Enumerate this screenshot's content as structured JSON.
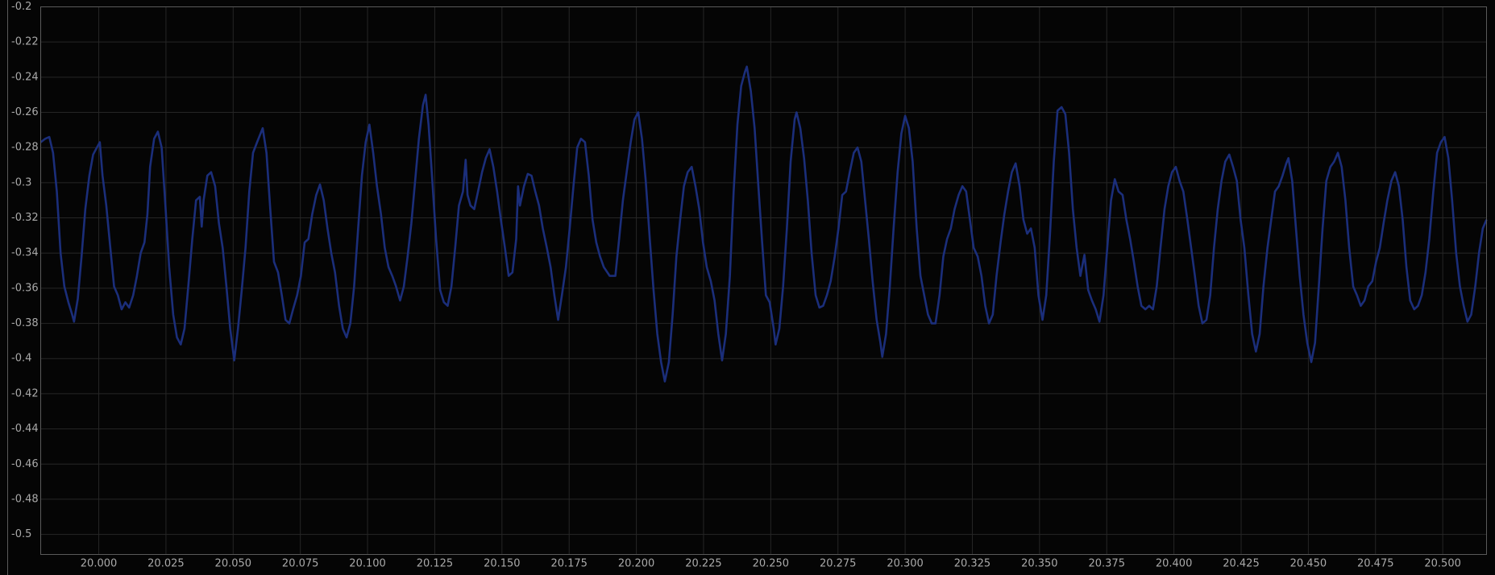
{
  "chart_data": {
    "type": "line",
    "color": "#1b2e7a",
    "grid": true,
    "xlim": [
      19.9784,
      20.5163
    ],
    "ylim": [
      -0.5114,
      -0.2
    ],
    "xticks": [
      {
        "value": 20,
        "label": "20.000"
      },
      20.025,
      {
        "value": 20.05,
        "label": "20.050"
      },
      20.075,
      {
        "value": 20.1,
        "label": "20.100"
      },
      20.125,
      {
        "value": 20.15,
        "label": "20.150"
      },
      20.175,
      {
        "value": 20.2,
        "label": "20.200"
      },
      20.225,
      {
        "value": 20.25,
        "label": "20.250"
      },
      20.275,
      {
        "value": 20.3,
        "label": "20.300"
      },
      20.325,
      {
        "value": 20.35,
        "label": "20.350"
      },
      20.375,
      {
        "value": 20.4,
        "label": "20.400"
      },
      20.425,
      {
        "value": 20.45,
        "label": "20.450"
      },
      20.475,
      {
        "value": 20.5,
        "label": "20.500"
      }
    ],
    "yticks": [
      -0.2,
      -0.22,
      -0.24,
      -0.26,
      -0.28,
      -0.3,
      -0.32,
      -0.34,
      -0.36,
      -0.38,
      -0.4,
      -0.42,
      -0.44,
      -0.46,
      -0.48,
      -0.5
    ],
    "x": [
      19.9784,
      19.9801,
      19.9816,
      19.983,
      19.9844,
      19.9858,
      19.9872,
      19.9887,
      19.9901,
      19.9908,
      19.9922,
      19.9936,
      19.995,
      19.9965,
      19.9979,
      19.9993,
      20.0004,
      20.0014,
      20.0028,
      20.0043,
      20.0057,
      20.0071,
      20.0085,
      20.0099,
      20.0113,
      20.0128,
      20.0142,
      20.0156,
      20.017,
      20.0181,
      20.0191,
      20.0206,
      20.022,
      20.0234,
      20.0248,
      20.0262,
      20.0277,
      20.0291,
      20.0305,
      20.0319,
      20.0333,
      20.0348,
      20.0362,
      20.0376,
      20.0383,
      20.039,
      20.0404,
      20.0418,
      20.0433,
      20.0447,
      20.0461,
      20.0475,
      20.0489,
      20.0504,
      20.0518,
      20.0532,
      20.0546,
      20.056,
      20.0574,
      20.0589,
      20.061,
      20.0624,
      20.0638,
      20.0652,
      20.0667,
      20.0681,
      20.0695,
      20.0709,
      20.0723,
      20.0738,
      20.0752,
      20.0766,
      20.078,
      20.0794,
      20.0809,
      20.0823,
      20.0837,
      20.0851,
      20.0865,
      20.0879,
      20.0894,
      20.0908,
      20.0922,
      20.0936,
      20.095,
      20.0965,
      20.0979,
      20.0993,
      20.1007,
      20.1021,
      20.1035,
      20.105,
      20.1064,
      20.1078,
      20.1092,
      20.1106,
      20.1121,
      20.1135,
      20.1149,
      20.1163,
      20.1177,
      20.1191,
      20.1206,
      20.1216,
      20.1227,
      20.1241,
      20.1255,
      20.127,
      20.1284,
      20.1298,
      20.1312,
      20.1326,
      20.134,
      20.1355,
      20.1365,
      20.1372,
      20.1383,
      20.1397,
      20.1411,
      20.1426,
      20.144,
      20.1454,
      20.1468,
      20.1482,
      20.1496,
      20.1511,
      20.1525,
      20.1539,
      20.1553,
      20.156,
      20.1567,
      20.1582,
      20.1596,
      20.161,
      20.1624,
      20.1638,
      20.1652,
      20.1667,
      20.1681,
      20.1695,
      20.1709,
      20.1723,
      20.1738,
      20.1752,
      20.1766,
      20.178,
      20.1794,
      20.1809,
      20.1823,
      20.1837,
      20.1851,
      20.1865,
      20.1879,
      20.1901,
      20.1922,
      20.1936,
      20.195,
      20.1964,
      20.1979,
      20.1993,
      20.2007,
      20.2021,
      20.2035,
      20.205,
      20.2064,
      20.2078,
      20.2092,
      20.2106,
      20.2121,
      20.2135,
      20.2149,
      20.2163,
      20.2177,
      20.2191,
      20.2206,
      20.222,
      20.2234,
      20.2248,
      20.2262,
      20.2277,
      20.2291,
      20.2305,
      20.2319,
      20.2333,
      20.2348,
      20.2362,
      20.2376,
      20.239,
      20.2404,
      20.2411,
      20.2426,
      20.244,
      20.2454,
      20.2468,
      20.2482,
      20.2496,
      20.2511,
      20.2518,
      20.2532,
      20.2546,
      20.256,
      20.2574,
      20.2589,
      20.2596,
      20.261,
      20.2624,
      20.2638,
      20.2652,
      20.2667,
      20.2681,
      20.2695,
      20.2709,
      20.2723,
      20.2738,
      20.2752,
      20.2766,
      20.278,
      20.2794,
      20.2809,
      20.2823,
      20.2837,
      20.2851,
      20.2865,
      20.2879,
      20.2894,
      20.2908,
      20.2915,
      20.2929,
      20.2943,
      20.2957,
      20.2972,
      20.2986,
      20.3,
      20.3014,
      20.3028,
      20.3043,
      20.3057,
      20.3071,
      20.3085,
      20.3099,
      20.3113,
      20.3128,
      20.3142,
      20.3156,
      20.317,
      20.3184,
      20.3199,
      20.3213,
      20.3227,
      20.3241,
      20.3255,
      20.327,
      20.3284,
      20.3298,
      20.3312,
      20.3326,
      20.334,
      20.3355,
      20.3369,
      20.3383,
      20.3397,
      20.3411,
      20.3426,
      20.344,
      20.3454,
      20.3468,
      20.3482,
      20.3496,
      20.3511,
      20.3525,
      20.3539,
      20.3553,
      20.3567,
      20.3582,
      20.3596,
      20.361,
      20.3624,
      20.3638,
      20.3652,
      20.3667,
      20.3681,
      20.3695,
      20.3709,
      20.3723,
      20.3738,
      20.3752,
      20.3766,
      20.378,
      20.3794,
      20.3809,
      20.3823,
      20.3837,
      20.3851,
      20.3865,
      20.3879,
      20.3894,
      20.3908,
      20.3922,
      20.3936,
      20.395,
      20.3965,
      20.3979,
      20.3993,
      20.4007,
      20.4021,
      20.4035,
      20.405,
      20.4064,
      20.4078,
      20.4092,
      20.4106,
      20.4121,
      20.4135,
      20.4149,
      20.4163,
      20.4177,
      20.4191,
      20.4206,
      20.422,
      20.4234,
      20.4248,
      20.4262,
      20.4277,
      20.4291,
      20.4305,
      20.4319,
      20.4333,
      20.4348,
      20.4362,
      20.4376,
      20.439,
      20.4404,
      20.4418,
      20.4426,
      20.444,
      20.4454,
      20.4468,
      20.4482,
      20.4496,
      20.4511,
      20.4525,
      20.4539,
      20.4553,
      20.4567,
      20.4582,
      20.4596,
      20.461,
      20.4624,
      20.4638,
      20.4652,
      20.4667,
      20.4681,
      20.4695,
      20.4709,
      20.4723,
      20.4738,
      20.4752,
      20.4766,
      20.478,
      20.4794,
      20.4809,
      20.4823,
      20.4837,
      20.4851,
      20.4865,
      20.4879,
      20.4894,
      20.4908,
      20.4922,
      20.4936,
      20.495,
      20.4965,
      20.4979,
      20.4993,
      20.5007,
      20.5021,
      20.5035,
      20.505,
      20.5064,
      20.5078,
      20.5092,
      20.5106,
      20.5121,
      20.5135,
      20.5149,
      20.5163
    ],
    "values": [
      -0.277,
      -0.275,
      -0.274,
      -0.283,
      -0.305,
      -0.34,
      -0.359,
      -0.368,
      -0.375,
      -0.379,
      -0.366,
      -0.342,
      -0.315,
      -0.296,
      -0.284,
      -0.28,
      -0.277,
      -0.296,
      -0.313,
      -0.337,
      -0.359,
      -0.364,
      -0.372,
      -0.368,
      -0.371,
      -0.364,
      -0.353,
      -0.34,
      -0.334,
      -0.318,
      -0.291,
      -0.275,
      -0.271,
      -0.28,
      -0.313,
      -0.348,
      -0.375,
      -0.388,
      -0.392,
      -0.383,
      -0.359,
      -0.332,
      -0.31,
      -0.308,
      -0.325,
      -0.31,
      -0.296,
      -0.294,
      -0.302,
      -0.323,
      -0.337,
      -0.359,
      -0.383,
      -0.401,
      -0.383,
      -0.361,
      -0.337,
      -0.305,
      -0.283,
      -0.277,
      -0.269,
      -0.283,
      -0.315,
      -0.345,
      -0.351,
      -0.364,
      -0.378,
      -0.38,
      -0.372,
      -0.364,
      -0.353,
      -0.334,
      -0.332,
      -0.318,
      -0.307,
      -0.301,
      -0.31,
      -0.326,
      -0.34,
      -0.351,
      -0.37,
      -0.383,
      -0.388,
      -0.38,
      -0.359,
      -0.326,
      -0.296,
      -0.277,
      -0.267,
      -0.283,
      -0.302,
      -0.318,
      -0.337,
      -0.348,
      -0.353,
      -0.359,
      -0.367,
      -0.359,
      -0.342,
      -0.323,
      -0.299,
      -0.275,
      -0.256,
      -0.25,
      -0.267,
      -0.299,
      -0.332,
      -0.361,
      -0.368,
      -0.37,
      -0.359,
      -0.337,
      -0.313,
      -0.305,
      -0.287,
      -0.307,
      -0.313,
      -0.315,
      -0.305,
      -0.294,
      -0.286,
      -0.281,
      -0.291,
      -0.305,
      -0.321,
      -0.337,
      -0.353,
      -0.351,
      -0.332,
      -0.302,
      -0.313,
      -0.302,
      -0.295,
      -0.296,
      -0.305,
      -0.313,
      -0.326,
      -0.337,
      -0.348,
      -0.364,
      -0.378,
      -0.364,
      -0.348,
      -0.326,
      -0.302,
      -0.28,
      -0.275,
      -0.277,
      -0.296,
      -0.321,
      -0.334,
      -0.342,
      -0.348,
      -0.353,
      -0.353,
      -0.332,
      -0.31,
      -0.294,
      -0.277,
      -0.264,
      -0.26,
      -0.275,
      -0.299,
      -0.332,
      -0.361,
      -0.386,
      -0.402,
      -0.413,
      -0.402,
      -0.375,
      -0.342,
      -0.321,
      -0.302,
      -0.294,
      -0.291,
      -0.302,
      -0.315,
      -0.334,
      -0.348,
      -0.356,
      -0.367,
      -0.386,
      -0.401,
      -0.386,
      -0.353,
      -0.305,
      -0.267,
      -0.245,
      -0.237,
      -0.234,
      -0.248,
      -0.269,
      -0.302,
      -0.334,
      -0.364,
      -0.368,
      -0.383,
      -0.392,
      -0.383,
      -0.359,
      -0.326,
      -0.288,
      -0.264,
      -0.26,
      -0.269,
      -0.286,
      -0.31,
      -0.34,
      -0.364,
      -0.371,
      -0.37,
      -0.364,
      -0.356,
      -0.342,
      -0.326,
      -0.307,
      -0.305,
      -0.294,
      -0.283,
      -0.28,
      -0.288,
      -0.31,
      -0.332,
      -0.356,
      -0.378,
      -0.391,
      -0.399,
      -0.386,
      -0.359,
      -0.326,
      -0.294,
      -0.272,
      -0.262,
      -0.269,
      -0.288,
      -0.326,
      -0.353,
      -0.364,
      -0.375,
      -0.38,
      -0.38,
      -0.364,
      -0.342,
      -0.332,
      -0.326,
      -0.315,
      -0.307,
      -0.302,
      -0.305,
      -0.321,
      -0.337,
      -0.342,
      -0.353,
      -0.37,
      -0.38,
      -0.375,
      -0.353,
      -0.334,
      -0.318,
      -0.305,
      -0.294,
      -0.289,
      -0.302,
      -0.321,
      -0.329,
      -0.326,
      -0.337,
      -0.364,
      -0.378,
      -0.364,
      -0.329,
      -0.288,
      -0.259,
      -0.257,
      -0.261,
      -0.283,
      -0.315,
      -0.337,
      -0.353,
      -0.341,
      -0.361,
      -0.367,
      -0.372,
      -0.379,
      -0.364,
      -0.337,
      -0.31,
      -0.298,
      -0.305,
      -0.307,
      -0.321,
      -0.332,
      -0.345,
      -0.359,
      -0.37,
      -0.372,
      -0.37,
      -0.372,
      -0.359,
      -0.337,
      -0.315,
      -0.302,
      -0.294,
      -0.291,
      -0.299,
      -0.305,
      -0.321,
      -0.337,
      -0.353,
      -0.37,
      -0.38,
      -0.378,
      -0.364,
      -0.337,
      -0.315,
      -0.299,
      -0.288,
      -0.284,
      -0.291,
      -0.299,
      -0.321,
      -0.337,
      -0.364,
      -0.386,
      -0.396,
      -0.386,
      -0.359,
      -0.337,
      -0.321,
      -0.305,
      -0.302,
      -0.296,
      -0.289,
      -0.286,
      -0.299,
      -0.326,
      -0.353,
      -0.375,
      -0.391,
      -0.402,
      -0.391,
      -0.359,
      -0.326,
      -0.299,
      -0.291,
      -0.288,
      -0.283,
      -0.291,
      -0.31,
      -0.337,
      -0.359,
      -0.364,
      -0.37,
      -0.367,
      -0.359,
      -0.356,
      -0.345,
      -0.337,
      -0.323,
      -0.31,
      -0.299,
      -0.294,
      -0.302,
      -0.321,
      -0.348,
      -0.367,
      -0.372,
      -0.37,
      -0.364,
      -0.351,
      -0.332,
      -0.305,
      -0.283,
      -0.277,
      -0.274,
      -0.286,
      -0.31,
      -0.34,
      -0.359,
      -0.37,
      -0.379,
      -0.375,
      -0.359,
      -0.34,
      -0.326,
      -0.321
    ]
  }
}
